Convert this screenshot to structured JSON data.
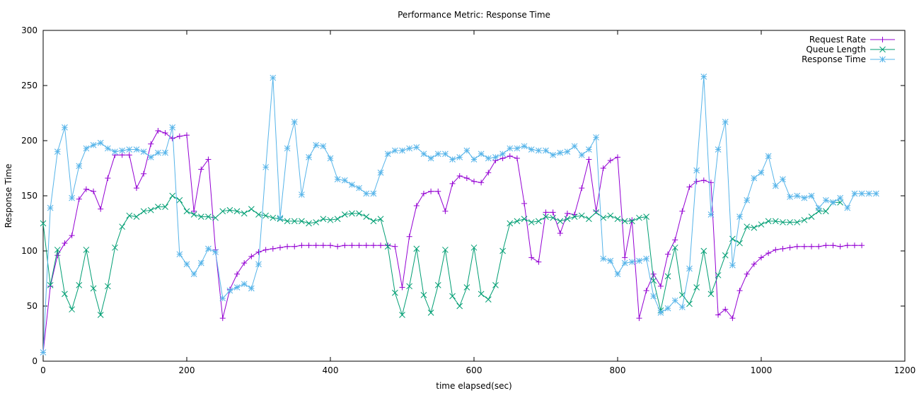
{
  "chart_data": {
    "type": "line",
    "title": "Performance Metric: Response Time",
    "xlabel": "time elapsed(sec)",
    "ylabel": "Response Time",
    "xlim": [
      0,
      1200
    ],
    "ylim": [
      0,
      300
    ],
    "xticks": [
      0,
      200,
      400,
      600,
      800,
      1000,
      1200
    ],
    "yticks": [
      0,
      50,
      100,
      150,
      200,
      250,
      300
    ],
    "grid": false,
    "legend_position": "top-right",
    "series": [
      {
        "name": "Request Rate",
        "color": "#9400d3",
        "marker": "plus",
        "x": [
          0,
          10,
          20,
          30,
          40,
          50,
          60,
          70,
          80,
          90,
          100,
          110,
          120,
          130,
          140,
          150,
          160,
          170,
          180,
          190,
          200,
          210,
          220,
          230,
          240,
          250,
          260,
          270,
          280,
          290,
          300,
          310,
          320,
          330,
          340,
          350,
          360,
          370,
          380,
          390,
          400,
          410,
          420,
          430,
          440,
          450,
          460,
          470,
          480,
          490,
          500,
          510,
          520,
          530,
          540,
          550,
          560,
          570,
          580,
          590,
          600,
          610,
          620,
          630,
          640,
          650,
          660,
          670,
          680,
          690,
          700,
          710,
          720,
          730,
          740,
          750,
          760,
          770,
          780,
          790,
          800,
          810,
          820,
          830,
          840,
          850,
          860,
          870,
          880,
          890,
          900,
          910,
          920,
          930,
          940,
          950,
          960,
          970,
          980,
          990,
          1000,
          1010,
          1020,
          1030,
          1040,
          1050,
          1060,
          1070,
          1080,
          1090,
          1100,
          1110,
          1120,
          1130,
          1140
        ],
        "y": [
          8,
          68,
          96,
          107,
          114,
          147,
          156,
          154,
          138,
          166,
          187,
          187,
          187,
          157,
          170,
          197,
          209,
          207,
          202,
          204,
          205,
          136,
          174,
          183,
          101,
          39,
          65,
          79,
          89,
          95,
          99,
          101,
          102,
          103,
          104,
          104,
          105,
          105,
          105,
          105,
          105,
          104,
          105,
          105,
          105,
          105,
          105,
          105,
          105,
          104,
          67,
          113,
          141,
          152,
          154,
          154,
          136,
          161,
          168,
          166,
          163,
          162,
          171,
          182,
          184,
          186,
          184,
          143,
          94,
          90,
          135,
          135,
          116,
          134,
          133,
          157,
          183,
          136,
          175,
          182,
          185,
          94,
          128,
          39,
          64,
          79,
          68,
          97,
          110,
          136,
          158,
          163,
          164,
          162,
          42,
          47,
          39,
          64,
          79,
          88,
          94,
          98,
          101,
          102,
          103,
          104,
          104,
          104,
          104,
          105,
          105,
          104,
          105,
          105,
          105
        ]
      },
      {
        "name": "Queue Length",
        "color": "#009e73",
        "marker": "cross",
        "x": [
          0,
          10,
          20,
          30,
          40,
          50,
          60,
          70,
          80,
          90,
          100,
          110,
          120,
          130,
          140,
          150,
          160,
          170,
          180,
          190,
          200,
          210,
          220,
          230,
          240,
          250,
          260,
          270,
          280,
          290,
          300,
          310,
          320,
          330,
          340,
          350,
          360,
          370,
          380,
          390,
          400,
          410,
          420,
          430,
          440,
          450,
          460,
          470,
          480,
          490,
          500,
          510,
          520,
          530,
          540,
          550,
          560,
          570,
          580,
          590,
          600,
          610,
          620,
          630,
          640,
          650,
          660,
          670,
          680,
          690,
          700,
          710,
          720,
          730,
          740,
          750,
          760,
          770,
          780,
          790,
          800,
          810,
          820,
          830,
          840,
          850,
          860,
          870,
          880,
          890,
          900,
          910,
          920,
          930,
          940,
          950,
          960,
          970,
          980,
          990,
          1000,
          1010,
          1020,
          1030,
          1040,
          1050,
          1060,
          1070,
          1080,
          1090,
          1100,
          1110
        ],
        "y": [
          125,
          69,
          101,
          61,
          47,
          69,
          101,
          66,
          42,
          68,
          103,
          122,
          132,
          131,
          136,
          137,
          140,
          140,
          150,
          146,
          136,
          133,
          131,
          131,
          130,
          136,
          137,
          136,
          134,
          138,
          133,
          132,
          130,
          129,
          127,
          127,
          127,
          125,
          126,
          129,
          128,
          129,
          133,
          134,
          134,
          131,
          127,
          129,
          104,
          62,
          42,
          68,
          102,
          60,
          44,
          69,
          101,
          59,
          50,
          67,
          103,
          61,
          56,
          69,
          100,
          125,
          127,
          129,
          126,
          127,
          131,
          130,
          127,
          129,
          131,
          132,
          129,
          135,
          130,
          132,
          129,
          127,
          127,
          130,
          131,
          73,
          46,
          77,
          103,
          60,
          52,
          67,
          100,
          61,
          78,
          96,
          111,
          107,
          122,
          121,
          124,
          127,
          127,
          126,
          126,
          126,
          128,
          131,
          136,
          136,
          144,
          144
        ]
      },
      {
        "name": "Response Time",
        "color": "#56b4e9",
        "marker": "star",
        "x": [
          0,
          10,
          20,
          30,
          40,
          50,
          60,
          70,
          80,
          90,
          100,
          110,
          120,
          130,
          140,
          150,
          160,
          170,
          180,
          190,
          200,
          210,
          220,
          230,
          240,
          250,
          260,
          270,
          280,
          290,
          300,
          310,
          320,
          330,
          340,
          350,
          360,
          370,
          380,
          390,
          400,
          410,
          420,
          430,
          440,
          450,
          460,
          470,
          480,
          490,
          500,
          510,
          520,
          530,
          540,
          550,
          560,
          570,
          580,
          590,
          600,
          610,
          620,
          630,
          640,
          650,
          660,
          670,
          680,
          690,
          700,
          710,
          720,
          730,
          740,
          750,
          760,
          770,
          780,
          790,
          800,
          810,
          820,
          830,
          840,
          850,
          860,
          870,
          880,
          890,
          900,
          910,
          920,
          930,
          940,
          950,
          960,
          970,
          980,
          990,
          1000,
          1010,
          1020,
          1030,
          1040,
          1050,
          1060,
          1070,
          1080,
          1090,
          1100,
          1110,
          1120,
          1130,
          1140,
          1150,
          1160
        ],
        "y": [
          8,
          139,
          190,
          212,
          148,
          177,
          193,
          196,
          198,
          193,
          190,
          191,
          192,
          192,
          190,
          185,
          189,
          189,
          212,
          97,
          88,
          79,
          89,
          102,
          99,
          57,
          64,
          67,
          70,
          66,
          88,
          176,
          257,
          130,
          193,
          217,
          151,
          185,
          196,
          195,
          184,
          165,
          164,
          160,
          157,
          152,
          152,
          171,
          188,
          191,
          191,
          193,
          194,
          188,
          184,
          188,
          188,
          183,
          185,
          191,
          183,
          188,
          184,
          185,
          188,
          193,
          193,
          195,
          192,
          191,
          191,
          187,
          189,
          190,
          195,
          187,
          192,
          203,
          93,
          91,
          79,
          89,
          90,
          91,
          93,
          59,
          44,
          48,
          55,
          49,
          84,
          173,
          258,
          133,
          192,
          217,
          87,
          131,
          146,
          166,
          171,
          186,
          159,
          165,
          149,
          150,
          148,
          150,
          139,
          146,
          144,
          148,
          139,
          152,
          152,
          152,
          152
        ]
      }
    ]
  }
}
